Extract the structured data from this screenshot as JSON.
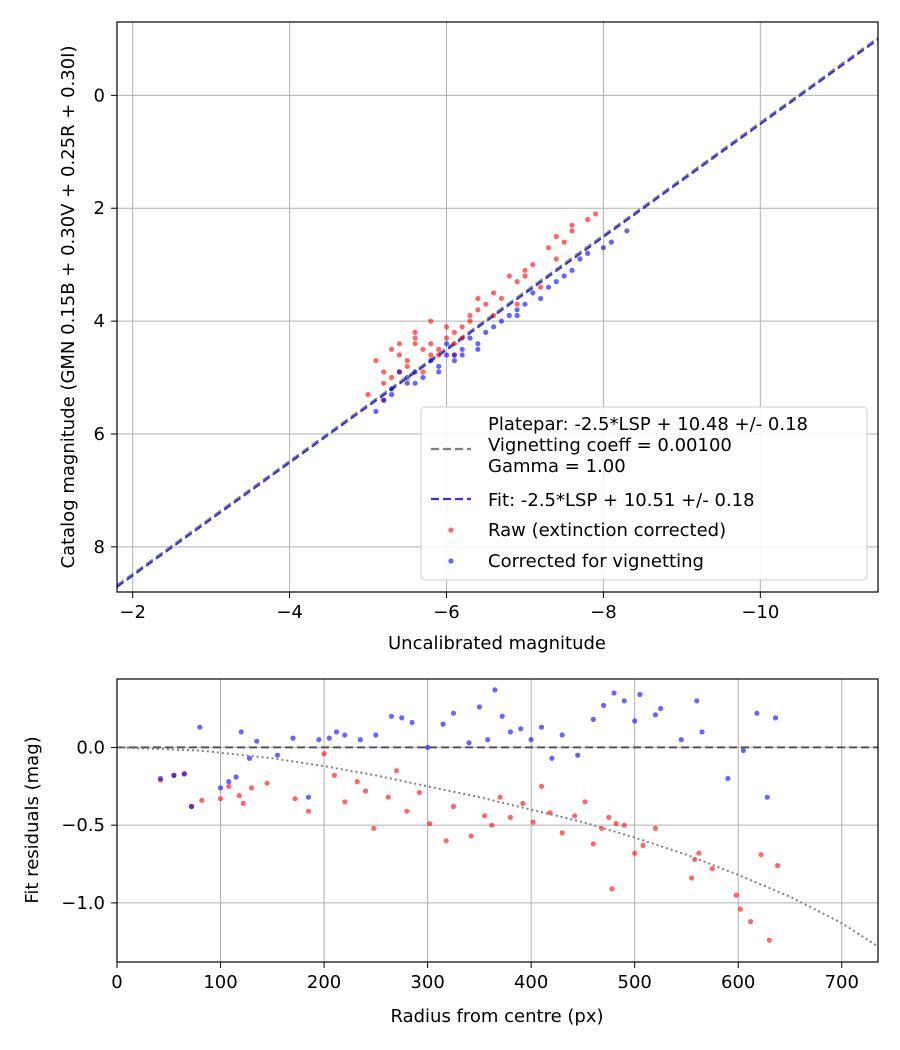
{
  "chart_data": [
    {
      "type": "scatter",
      "xlabel": "Uncalibrated magnitude",
      "ylabel": "Catalog magnitude (GMN 0.15B + 0.30V + 0.25R + 0.30I)",
      "xlim": [
        -1.8,
        -11.5
      ],
      "ylim": [
        8.8,
        -1.3
      ],
      "x_ticks": [
        -2,
        -4,
        -6,
        -8,
        -10
      ],
      "x_tick_labels": [
        "−2",
        "−4",
        "−6",
        "−8",
        "−10"
      ],
      "y_ticks": [
        0,
        2,
        4,
        6,
        8
      ],
      "y_tick_labels": [
        "0",
        "2",
        "4",
        "6",
        "8"
      ],
      "grid": true,
      "legend_position": "lower-right",
      "legend": [
        {
          "label": "Platepar: -2.5*LSP + 10.48 +/- 0.18\nVignetting coeff = 0.00100\nGamma = 1.00",
          "style": "dashed-line",
          "color": "#808080"
        },
        {
          "label": "Fit: -2.5*LSP + 10.51 +/- 0.18",
          "style": "dashed-line",
          "color": "#3333dd"
        },
        {
          "label": "Raw (extinction corrected)",
          "style": "marker",
          "color": "#ff0000"
        },
        {
          "label": "Corrected for vignetting",
          "style": "marker",
          "color": "#0000ff"
        }
      ],
      "lines": [
        {
          "name": "Platepar",
          "slope": 1.0,
          "intercept": 10.48,
          "color": "#808080",
          "dash": "dashed"
        },
        {
          "name": "Fit",
          "slope": 1.0,
          "intercept": 10.51,
          "color": "#3333dd",
          "dash": "dashed"
        }
      ],
      "series": [
        {
          "name": "Raw (extinction corrected)",
          "color": "#ff0000",
          "x": [
            -5.1,
            -5.2,
            -5.3,
            -5.2,
            -5.4,
            -5.5,
            -5.4,
            -5.6,
            -5.7,
            -5.8,
            -5.6,
            -5.9,
            -6.0,
            -6.1,
            -5.8,
            -6.2,
            -6.3,
            -6.1,
            -6.4,
            -6.5,
            -6.6,
            -6.3,
            -6.8,
            -6.9,
            -7.0,
            -7.1,
            -7.3,
            -7.4,
            -7.5,
            -7.6,
            -7.9,
            -7.2,
            -6.7,
            -6.0,
            -5.5,
            -5.3,
            -5.9,
            -6.2,
            -5.7,
            -5.0,
            -5.6,
            -6.4,
            -7.6,
            -7.8,
            -6.9,
            -6.1,
            -5.4,
            -5.2,
            -5.8,
            -6.6,
            -7.0,
            -7.4
          ],
          "y": [
            4.7,
            4.9,
            4.5,
            5.1,
            4.6,
            4.8,
            4.4,
            4.3,
            4.5,
            4.6,
            4.2,
            4.5,
            4.3,
            4.4,
            4.0,
            4.1,
            3.9,
            4.2,
            3.8,
            3.7,
            3.5,
            4.0,
            3.2,
            3.3,
            3.1,
            3.0,
            2.7,
            2.5,
            2.6,
            2.3,
            2.1,
            3.4,
            3.6,
            4.1,
            4.7,
            5.0,
            4.6,
            4.3,
            4.9,
            5.3,
            4.4,
            3.6,
            2.4,
            2.2,
            3.7,
            4.6,
            4.9,
            5.4,
            4.4,
            3.9,
            3.2,
            2.9
          ]
        },
        {
          "name": "Corrected for vignetting",
          "color": "#0000ff",
          "x": [
            -5.2,
            -5.3,
            -5.5,
            -5.4,
            -5.6,
            -5.8,
            -5.7,
            -5.9,
            -6.0,
            -6.1,
            -6.2,
            -6.0,
            -6.3,
            -6.4,
            -6.5,
            -6.6,
            -6.8,
            -6.9,
            -7.0,
            -7.2,
            -7.3,
            -7.4,
            -7.6,
            -7.8,
            -8.0,
            -8.3,
            -7.1,
            -6.7,
            -6.2,
            -5.6,
            -5.3,
            -5.9,
            -6.4,
            -7.5,
            -8.1,
            -5.1,
            -5.5,
            -6.1,
            -6.9,
            -7.7
          ],
          "y": [
            5.4,
            5.3,
            5.1,
            4.9,
            4.9,
            4.7,
            5.0,
            4.8,
            4.6,
            4.7,
            4.5,
            4.4,
            4.3,
            4.4,
            4.2,
            4.1,
            3.9,
            3.9,
            3.7,
            3.6,
            3.4,
            3.3,
            3.1,
            2.8,
            2.7,
            2.4,
            3.5,
            4.0,
            4.6,
            5.1,
            5.2,
            4.9,
            4.5,
            3.2,
            2.6,
            5.6,
            5.0,
            4.6,
            3.8,
            2.9
          ]
        }
      ]
    },
    {
      "type": "scatter",
      "xlabel": "Radius from centre (px)",
      "ylabel": "Fit residuals (mag)",
      "xlim": [
        0,
        735
      ],
      "ylim": [
        -1.38,
        0.44
      ],
      "x_ticks": [
        0,
        100,
        200,
        300,
        400,
        500,
        600,
        700
      ],
      "x_tick_labels": [
        "0",
        "100",
        "200",
        "300",
        "400",
        "500",
        "600",
        "700"
      ],
      "y_ticks": [
        0.0,
        -0.5,
        -1.0
      ],
      "y_tick_labels": [
        "0.0",
        "−0.5",
        "−1.0"
      ],
      "grid": true,
      "lines": [
        {
          "name": "Zero residual",
          "color": "#555555",
          "dash": "dashed",
          "y": 0.0
        },
        {
          "name": "Vignetting model",
          "color": "#808080",
          "dash": "dotted",
          "x": [
            0,
            80,
            150,
            200,
            250,
            300,
            350,
            400,
            450,
            500,
            550,
            600,
            650,
            700,
            735
          ],
          "y": [
            0.0,
            -0.02,
            -0.07,
            -0.12,
            -0.18,
            -0.25,
            -0.32,
            -0.4,
            -0.48,
            -0.58,
            -0.69,
            -0.82,
            -0.96,
            -1.13,
            -1.28
          ]
        }
      ],
      "series": [
        {
          "name": "Raw (extinction corrected)",
          "color": "#ff0000",
          "x": [
            42,
            55,
            65,
            72,
            82,
            100,
            108,
            118,
            122,
            130,
            145,
            172,
            185,
            200,
            210,
            220,
            232,
            240,
            248,
            262,
            270,
            280,
            292,
            302,
            318,
            325,
            342,
            355,
            362,
            370,
            380,
            392,
            402,
            410,
            418,
            430,
            442,
            452,
            460,
            468,
            475,
            478,
            482,
            490,
            500,
            508,
            520,
            555,
            558,
            562,
            575,
            598,
            602,
            612,
            622,
            630,
            638
          ],
          "y": [
            -0.21,
            -0.18,
            -0.17,
            -0.38,
            -0.34,
            -0.33,
            -0.25,
            -0.31,
            -0.36,
            -0.26,
            -0.23,
            -0.33,
            -0.41,
            -0.04,
            -0.18,
            -0.35,
            -0.22,
            -0.28,
            -0.52,
            -0.32,
            -0.15,
            -0.41,
            -0.29,
            -0.49,
            -0.6,
            -0.38,
            -0.57,
            -0.44,
            -0.5,
            -0.32,
            -0.45,
            -0.36,
            -0.48,
            -0.25,
            -0.42,
            -0.55,
            -0.44,
            -0.35,
            -0.62,
            -0.52,
            -0.45,
            -0.91,
            -0.49,
            -0.5,
            -0.68,
            -0.63,
            -0.52,
            -0.84,
            -0.72,
            -0.68,
            -0.78,
            -0.95,
            -1.04,
            -1.12,
            -0.69,
            -1.24,
            -0.76
          ]
        },
        {
          "name": "Corrected for vignetting",
          "color": "#0000ff",
          "x": [
            42,
            55,
            65,
            72,
            80,
            100,
            108,
            115,
            120,
            128,
            135,
            155,
            170,
            185,
            195,
            205,
            212,
            220,
            235,
            250,
            265,
            275,
            285,
            300,
            315,
            325,
            340,
            350,
            358,
            365,
            372,
            380,
            390,
            400,
            410,
            420,
            430,
            445,
            460,
            470,
            480,
            490,
            500,
            505,
            520,
            525,
            545,
            560,
            565,
            590,
            605,
            618,
            628,
            636
          ],
          "y": [
            -0.2,
            -0.18,
            -0.17,
            -0.38,
            0.13,
            -0.26,
            -0.22,
            -0.19,
            0.1,
            -0.07,
            0.04,
            -0.05,
            0.06,
            -0.32,
            0.05,
            0.06,
            0.1,
            0.08,
            0.05,
            0.08,
            0.2,
            0.19,
            0.16,
            0.0,
            0.15,
            0.22,
            0.03,
            0.26,
            0.05,
            0.37,
            0.2,
            0.1,
            0.12,
            0.05,
            0.13,
            -0.07,
            0.08,
            -0.05,
            0.18,
            0.27,
            0.35,
            0.3,
            0.17,
            0.34,
            0.21,
            0.25,
            0.05,
            0.3,
            0.1,
            -0.2,
            -0.02,
            0.22,
            -0.32,
            0.19
          ]
        }
      ]
    }
  ]
}
